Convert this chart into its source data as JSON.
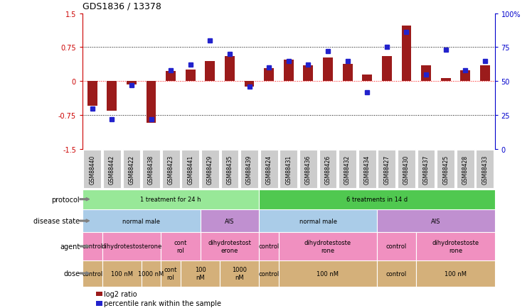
{
  "title": "GDS1836 / 13378",
  "samples": [
    "GSM88440",
    "GSM88442",
    "GSM88422",
    "GSM88438",
    "GSM88423",
    "GSM88441",
    "GSM88429",
    "GSM88435",
    "GSM88439",
    "GSM88424",
    "GSM88431",
    "GSM88436",
    "GSM88426",
    "GSM88432",
    "GSM88434",
    "GSM88427",
    "GSM88430",
    "GSM88437",
    "GSM88425",
    "GSM88428",
    "GSM88433"
  ],
  "log2_ratio": [
    -0.55,
    -0.65,
    -0.08,
    -0.92,
    0.22,
    0.26,
    0.45,
    0.56,
    -0.12,
    0.28,
    0.48,
    0.35,
    0.52,
    0.38,
    0.14,
    0.56,
    1.22,
    0.35,
    0.06,
    0.24,
    0.35
  ],
  "percentile": [
    30,
    22,
    47,
    22,
    58,
    62,
    80,
    70,
    46,
    60,
    65,
    62,
    72,
    65,
    42,
    75,
    86,
    55,
    73,
    58,
    65
  ],
  "ylim_left": [
    -1.5,
    1.5
  ],
  "ylim_right": [
    0,
    100
  ],
  "yticks_left": [
    -1.5,
    -0.75,
    0,
    0.75,
    1.5
  ],
  "yticks_right": [
    0,
    25,
    50,
    75,
    100
  ],
  "bar_color": "#9B1B1B",
  "dot_color": "#2222CC",
  "bar_width": 0.5,
  "dot_size": 5,
  "protocol_segments": [
    {
      "label": "1 treatment for 24 h",
      "start": 0,
      "end": 8,
      "color": "#98E898"
    },
    {
      "label": "6 treatments in 14 d",
      "start": 9,
      "end": 20,
      "color": "#50C850"
    }
  ],
  "disease_segments": [
    {
      "label": "normal male",
      "start": 0,
      "end": 5,
      "color": "#AACCE8"
    },
    {
      "label": "AIS",
      "start": 6,
      "end": 8,
      "color": "#C090D0"
    },
    {
      "label": "normal male",
      "start": 9,
      "end": 14,
      "color": "#AACCE8"
    },
    {
      "label": "AIS",
      "start": 15,
      "end": 20,
      "color": "#C090D0"
    }
  ],
  "agent_segments": [
    {
      "label": "control",
      "start": 0,
      "end": 0,
      "color": "#F090C0"
    },
    {
      "label": "dihydrotestosterone",
      "start": 1,
      "end": 3,
      "color": "#F090C0"
    },
    {
      "label": "cont\nrol",
      "start": 4,
      "end": 5,
      "color": "#F090C0"
    },
    {
      "label": "dihydrotestost\nerone",
      "start": 6,
      "end": 8,
      "color": "#F090C0"
    },
    {
      "label": "control",
      "start": 9,
      "end": 9,
      "color": "#F090C0"
    },
    {
      "label": "dihydrotestoste\nrone",
      "start": 10,
      "end": 14,
      "color": "#F090C0"
    },
    {
      "label": "control",
      "start": 15,
      "end": 16,
      "color": "#F090C0"
    },
    {
      "label": "dihydrotestoste\nrone",
      "start": 17,
      "end": 20,
      "color": "#F090C0"
    }
  ],
  "dose_segments": [
    {
      "label": "control",
      "start": 0,
      "end": 0,
      "color": "#D4B07A"
    },
    {
      "label": "100 nM",
      "start": 1,
      "end": 2,
      "color": "#D4B07A"
    },
    {
      "label": "1000 nM",
      "start": 3,
      "end": 3,
      "color": "#D4B07A"
    },
    {
      "label": "cont\nrol",
      "start": 4,
      "end": 4,
      "color": "#D4B07A"
    },
    {
      "label": "100\nnM",
      "start": 5,
      "end": 6,
      "color": "#D4B07A"
    },
    {
      "label": "1000\nnM",
      "start": 7,
      "end": 8,
      "color": "#D4B07A"
    },
    {
      "label": "control",
      "start": 9,
      "end": 9,
      "color": "#D4B07A"
    },
    {
      "label": "100 nM",
      "start": 10,
      "end": 14,
      "color": "#D4B07A"
    },
    {
      "label": "control",
      "start": 15,
      "end": 16,
      "color": "#D4B07A"
    },
    {
      "label": "100 nM",
      "start": 17,
      "end": 20,
      "color": "#D4B07A"
    }
  ],
  "row_labels": [
    "protocol",
    "disease state",
    "agent",
    "dose"
  ],
  "legend": [
    {
      "label": "log2 ratio",
      "color": "#9B1B1B"
    },
    {
      "label": "percentile rank within the sample",
      "color": "#2222CC"
    }
  ],
  "left_axis_color": "#CC0000",
  "right_axis_color": "#0000CC",
  "xtick_bg": "#CCCCCC",
  "sample_border": "#888888"
}
